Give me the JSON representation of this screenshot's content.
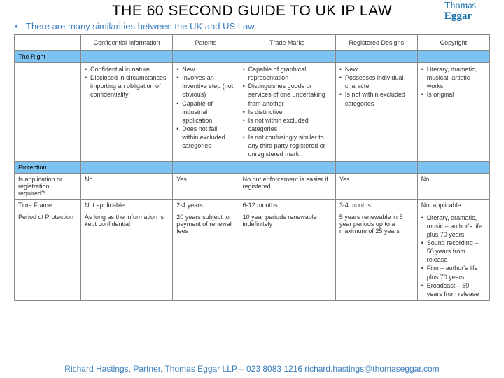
{
  "title": "THE 60 SECOND GUIDE TO UK IP LAW",
  "logo": {
    "top": "Thomas",
    "bottom": "Eggar"
  },
  "subtitle": "There are many similarities between the UK and US Law.",
  "colors": {
    "header_blue": "#7dc3f2",
    "text_blue": "#3a7fbf",
    "border": "#888888"
  },
  "columns": [
    "",
    "Confidential Information",
    "Patents",
    "Trade Marks",
    "Registered Designs",
    "Copyright"
  ],
  "sections": [
    {
      "label": "The Right"
    },
    {
      "label": "Protection"
    }
  ],
  "right_row": {
    "label": "",
    "cells": [
      [
        "Confidential in nature",
        "Disclosed in circumstances importing an obligation of confidentiality"
      ],
      [
        "New",
        "Involves an inventive step (not obvious)",
        "Capable of industrial application",
        "Does not fall within excluded categories"
      ],
      [
        "Capable of graphical representation",
        "Distinguishes goods or services of one undertaking from another",
        "Is distinctive",
        "Is not within excluded categories",
        "Is not confusingly similar to any third party registered or unregistered mark"
      ],
      [
        "New",
        "Possesses individual character",
        "Is not within excluded categories"
      ],
      [
        "Literary, dramatic, musical, artistic works",
        "Is original"
      ]
    ]
  },
  "protection_rows": [
    {
      "label": "Is application or registration required?",
      "cells": [
        "No",
        "Yes",
        "No but enforcement is easier if registered",
        "Yes",
        "No"
      ]
    },
    {
      "label": "Time Frame",
      "cells": [
        "Not applicable",
        "2-4 years",
        "6-12 months",
        "3-4 months",
        "Not applicable"
      ]
    },
    {
      "label": "Period of Protection",
      "cells": [
        "As long as the information is kept confidential",
        "20 years subject to payment of renewal fees",
        "10 year periods renewable indefinitely",
        "5 years renewable in 5 year periods up to a maximum of 25 years",
        [
          "Literary, dramatic, music – author's life plus 70 years",
          "Sound recording – 50 years from release",
          "Film – author's life plus 70 years",
          "Broadcast – 50 years from release"
        ]
      ]
    }
  ],
  "footer": "Richard Hastings, Partner, Thomas Eggar LLP – 023 8083 1216   richard.hastings@thomaseggar.com"
}
